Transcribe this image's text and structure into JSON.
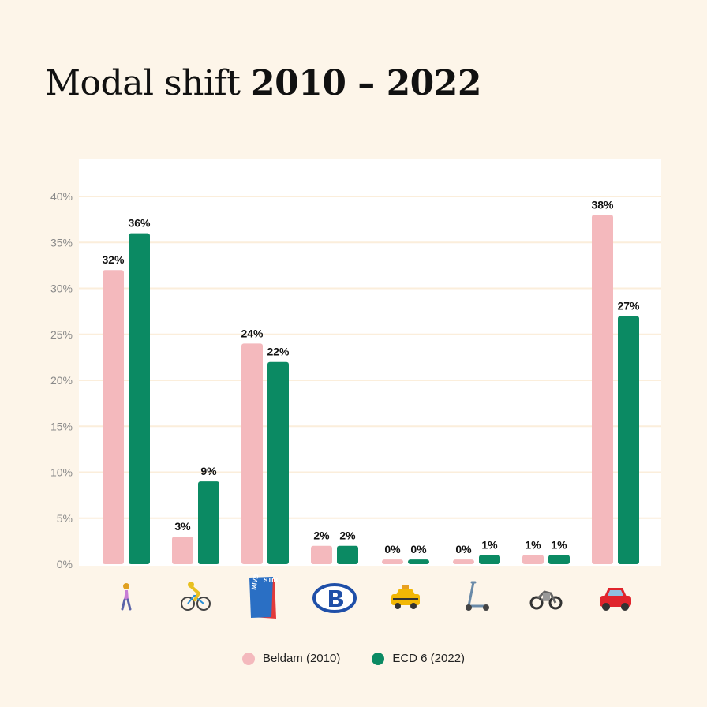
{
  "header": {
    "title_light": "Modal shift",
    "title_bold": "2010 – 2022"
  },
  "chart_data": {
    "type": "bar",
    "categories": [
      "walking",
      "cycling",
      "public transport",
      "train",
      "taxi",
      "e-scooter",
      "motorcycle",
      "car"
    ],
    "category_icons": [
      "walking-person-icon",
      "cyclist-icon",
      "stib-mivb-card-icon",
      "sncb-logo-icon",
      "taxi-icon",
      "kick-scooter-icon",
      "motorcycle-icon",
      "car-icon"
    ],
    "series": [
      {
        "name": "Beldam (2010)",
        "color": "#f4b9bd",
        "values": [
          32,
          3,
          24,
          2,
          0,
          0,
          1,
          38
        ],
        "labels": [
          "32%",
          "3%",
          "24%",
          "2%",
          "0%",
          "0%",
          "1%",
          "38%"
        ]
      },
      {
        "name": "ECD 6 (2022)",
        "color": "#0b8a63",
        "values": [
          36,
          9,
          22,
          2,
          0,
          1,
          1,
          27
        ],
        "labels": [
          "36%",
          "9%",
          "22%",
          "2%",
          "0%",
          "1%",
          "1%",
          "27%"
        ]
      }
    ],
    "yticks": [
      "0%",
      "5%",
      "10%",
      "15%",
      "20%",
      "25%",
      "30%",
      "35%",
      "40%"
    ],
    "ylim": [
      0,
      40
    ],
    "grid": true,
    "legend_position": "bottom-center",
    "public_transport_card_text": [
      "MIVB",
      "STIB"
    ]
  }
}
